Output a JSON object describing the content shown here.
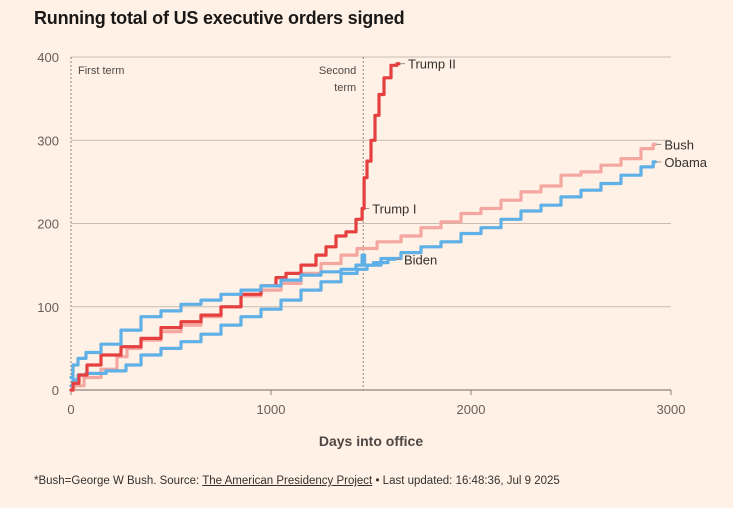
{
  "title": "Running total of US executive orders signed",
  "footer": {
    "note": "*Bush=George W Bush. Source: ",
    "source_link": "The American Presidency Project",
    "updated": " • Last updated: 16:48:36, Jul 9 2025"
  },
  "chart_data": {
    "type": "line",
    "title": "Running total of US executive orders signed",
    "xlabel": "Days into office",
    "ylabel": "",
    "xlim": [
      0,
      3000
    ],
    "ylim": [
      0,
      400
    ],
    "x_ticks": [
      "0",
      "1000",
      "2000",
      "3000"
    ],
    "y_ticks": [
      "0",
      "100",
      "200",
      "300",
      "400"
    ],
    "grid": "horizontal",
    "annotations": [
      {
        "text": "First term",
        "x": 0
      },
      {
        "text": "Second term",
        "x": 1461
      }
    ],
    "series": [
      {
        "name": "Bush",
        "color": "#f4a7a0",
        "label_position": "end",
        "points": [
          [
            0,
            0
          ],
          [
            30,
            5
          ],
          [
            100,
            15
          ],
          [
            200,
            25
          ],
          [
            260,
            40
          ],
          [
            300,
            50
          ],
          [
            400,
            60
          ],
          [
            500,
            70
          ],
          [
            600,
            78
          ],
          [
            700,
            88
          ],
          [
            800,
            100
          ],
          [
            900,
            113
          ],
          [
            1000,
            120
          ],
          [
            1100,
            128
          ],
          [
            1200,
            140
          ],
          [
            1300,
            152
          ],
          [
            1400,
            162
          ],
          [
            1461,
            170
          ],
          [
            1600,
            178
          ],
          [
            1700,
            185
          ],
          [
            1800,
            195
          ],
          [
            1900,
            202
          ],
          [
            2000,
            212
          ],
          [
            2100,
            218
          ],
          [
            2200,
            228
          ],
          [
            2300,
            238
          ],
          [
            2400,
            245
          ],
          [
            2500,
            258
          ],
          [
            2600,
            262
          ],
          [
            2700,
            270
          ],
          [
            2800,
            278
          ],
          [
            2900,
            290
          ],
          [
            2922,
            295
          ]
        ]
      },
      {
        "name": "Obama",
        "color": "#5fb0e6",
        "label_position": "end",
        "points": [
          [
            0,
            5
          ],
          [
            20,
            12
          ],
          [
            50,
            18
          ],
          [
            100,
            20
          ],
          [
            250,
            23
          ],
          [
            300,
            30
          ],
          [
            400,
            42
          ],
          [
            500,
            50
          ],
          [
            600,
            58
          ],
          [
            700,
            67
          ],
          [
            800,
            78
          ],
          [
            900,
            88
          ],
          [
            1000,
            97
          ],
          [
            1100,
            108
          ],
          [
            1200,
            120
          ],
          [
            1300,
            130
          ],
          [
            1400,
            140
          ],
          [
            1461,
            145
          ],
          [
            1500,
            150
          ],
          [
            1600,
            158
          ],
          [
            1700,
            165
          ],
          [
            1800,
            172
          ],
          [
            1900,
            178
          ],
          [
            2000,
            188
          ],
          [
            2100,
            195
          ],
          [
            2200,
            205
          ],
          [
            2300,
            215
          ],
          [
            2400,
            222
          ],
          [
            2500,
            232
          ],
          [
            2600,
            240
          ],
          [
            2700,
            248
          ],
          [
            2800,
            258
          ],
          [
            2900,
            268
          ],
          [
            2922,
            274
          ]
        ]
      },
      {
        "name": "Trump I",
        "color": "#e5403f",
        "label_position": "end",
        "points": [
          [
            0,
            0
          ],
          [
            20,
            8
          ],
          [
            60,
            18
          ],
          [
            100,
            30
          ],
          [
            200,
            42
          ],
          [
            300,
            52
          ],
          [
            400,
            62
          ],
          [
            500,
            75
          ],
          [
            600,
            82
          ],
          [
            700,
            90
          ],
          [
            800,
            100
          ],
          [
            900,
            115
          ],
          [
            1000,
            125
          ],
          [
            1050,
            135
          ],
          [
            1100,
            140
          ],
          [
            1200,
            150
          ],
          [
            1250,
            162
          ],
          [
            1300,
            172
          ],
          [
            1350,
            185
          ],
          [
            1400,
            190
          ],
          [
            1450,
            205
          ],
          [
            1461,
            218
          ]
        ]
      },
      {
        "name": "Trump II",
        "color": "#e5403f",
        "label_position": "end",
        "points": [
          [
            1461,
            218
          ],
          [
            1470,
            255
          ],
          [
            1490,
            275
          ],
          [
            1510,
            300
          ],
          [
            1530,
            330
          ],
          [
            1550,
            355
          ],
          [
            1580,
            375
          ],
          [
            1620,
            390
          ],
          [
            1640,
            392
          ]
        ]
      },
      {
        "name": "Biden",
        "color": "#5fb0e6",
        "label_position": "end",
        "points": [
          [
            0,
            15
          ],
          [
            20,
            30
          ],
          [
            50,
            38
          ],
          [
            100,
            45
          ],
          [
            200,
            55
          ],
          [
            300,
            72
          ],
          [
            400,
            88
          ],
          [
            500,
            95
          ],
          [
            600,
            103
          ],
          [
            700,
            108
          ],
          [
            800,
            115
          ],
          [
            900,
            120
          ],
          [
            1000,
            125
          ],
          [
            1100,
            132
          ],
          [
            1200,
            138
          ],
          [
            1300,
            142
          ],
          [
            1400,
            145
          ],
          [
            1450,
            150
          ],
          [
            1461,
            162
          ],
          [
            1475,
            150
          ],
          [
            1550,
            153
          ],
          [
            1620,
            157
          ]
        ]
      }
    ]
  }
}
